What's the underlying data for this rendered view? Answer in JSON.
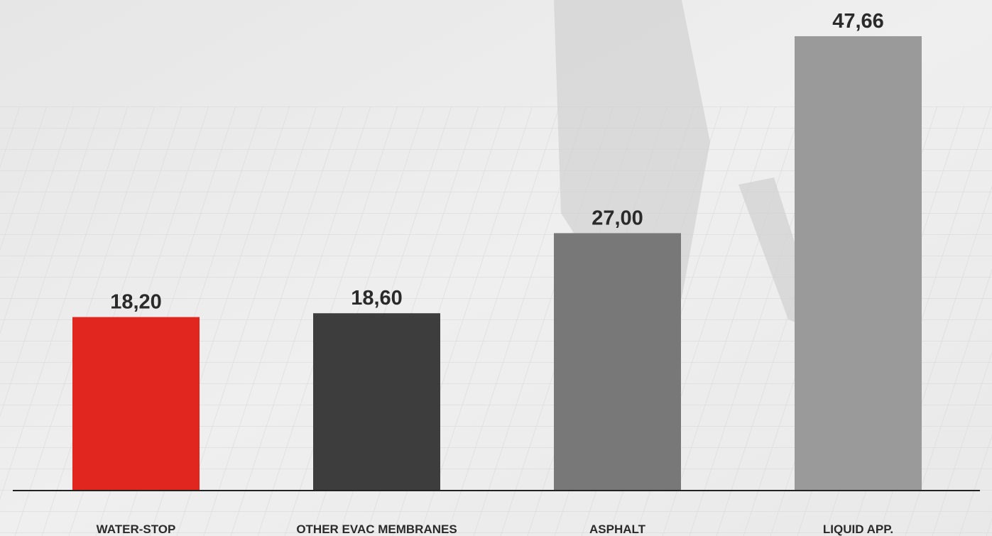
{
  "chart_data": {
    "type": "bar",
    "categories": [
      "WATER-STOP",
      "OTHER EVAC MEMBRANES",
      "ASPHALT",
      "LIQUID APP."
    ],
    "values": [
      18.2,
      18.6,
      27.0,
      47.66
    ],
    "value_labels": [
      "18,20",
      "18,60",
      "27,00",
      "47,66"
    ],
    "colors": [
      "#e0261f",
      "#3d3d3d",
      "#787878",
      "#9a9a9a"
    ]
  }
}
